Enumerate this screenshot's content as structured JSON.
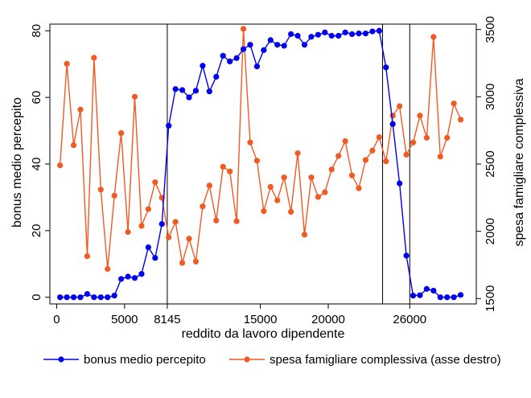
{
  "chart_data": {
    "type": "line",
    "xlabel": "reddito da lavoro dipendente",
    "ylabel_left": "bonus medio percepito",
    "ylabel_right": "spesa famigliare complessiva",
    "x_ticks": [
      {
        "value": 0,
        "label": "0"
      },
      {
        "value": 5000,
        "label": "5000"
      },
      {
        "value": 8145,
        "label": "8145"
      },
      {
        "value": 15000,
        "label": "15000"
      },
      {
        "value": 20000,
        "label": "20000"
      },
      {
        "value": 26000,
        "label": "26000"
      }
    ],
    "y_left_ticks": [
      {
        "value": 0,
        "label": "0"
      },
      {
        "value": 20,
        "label": "20"
      },
      {
        "value": 40,
        "label": "40"
      },
      {
        "value": 60,
        "label": "60"
      },
      {
        "value": 80,
        "label": "80"
      }
    ],
    "y_right_ticks": [
      {
        "value": 1500,
        "label": "1500"
      },
      {
        "value": 2000,
        "label": "2000"
      },
      {
        "value": 2500,
        "label": "2500"
      },
      {
        "value": 3000,
        "label": "3000"
      },
      {
        "value": 3500,
        "label": "3500"
      }
    ],
    "x_range": [
      -500,
      30900
    ],
    "y_left_range": [
      -2,
      82
    ],
    "y_right_range": [
      1460,
      3540
    ],
    "vertical_lines": [
      8145,
      24000,
      26000
    ],
    "x": [
      250,
      750,
      1250,
      1750,
      2250,
      2750,
      3250,
      3750,
      4250,
      4750,
      5250,
      5750,
      6250,
      6750,
      7250,
      7750,
      8250,
      8750,
      9250,
      9750,
      10250,
      10750,
      11250,
      11750,
      12250,
      12750,
      13250,
      13750,
      14250,
      14750,
      15250,
      15750,
      16250,
      16750,
      17250,
      17750,
      18250,
      18750,
      19250,
      19750,
      20250,
      20750,
      21250,
      21750,
      22250,
      22750,
      23250,
      23750,
      24250,
      24750,
      25250,
      25750,
      26250,
      26750,
      27250,
      27750,
      28250,
      28750,
      29250,
      29750
    ],
    "series": [
      {
        "name": "bonus medio percepito",
        "axis": "left",
        "color": "#0000ee",
        "values": [
          0,
          0,
          0,
          0,
          1,
          0,
          0,
          0,
          0.5,
          5.5,
          6.2,
          5.8,
          7,
          15,
          11.8,
          22,
          51.5,
          62.5,
          62.2,
          60,
          62,
          69.5,
          61.8,
          66.2,
          72.5,
          70.8,
          71.8,
          74.5,
          75.8,
          69.3,
          74.2,
          77.2,
          75.8,
          75.5,
          79,
          78.5,
          75.8,
          78.2,
          78.8,
          79.5,
          78.5,
          78.5,
          79.5,
          79,
          79.2,
          79.2,
          79.8,
          80,
          69,
          52,
          34.2,
          12.5,
          0.5,
          0.6,
          2.5,
          2,
          0,
          0,
          0,
          0.7
        ]
      },
      {
        "name": "spesa famigliare complessiva (asse destro)",
        "axis": "right",
        "color": "#f05a23",
        "values": [
          2490,
          3245,
          2640,
          2905,
          1815,
          3290,
          2310,
          1720,
          2265,
          2730,
          1995,
          3000,
          2040,
          2165,
          2365,
          2250,
          1955,
          2070,
          1765,
          1945,
          1775,
          2185,
          2340,
          2080,
          2480,
          2445,
          2075,
          3505,
          2660,
          2525,
          2150,
          2330,
          2230,
          2400,
          2145,
          2580,
          1975,
          2400,
          2255,
          2290,
          2460,
          2560,
          2670,
          2415,
          2320,
          2530,
          2600,
          2700,
          2520,
          2860,
          2930,
          2570,
          2660,
          2860,
          2695,
          3445,
          2555,
          2695,
          2950,
          2830
        ]
      }
    ],
    "legend_position": "bottom"
  }
}
